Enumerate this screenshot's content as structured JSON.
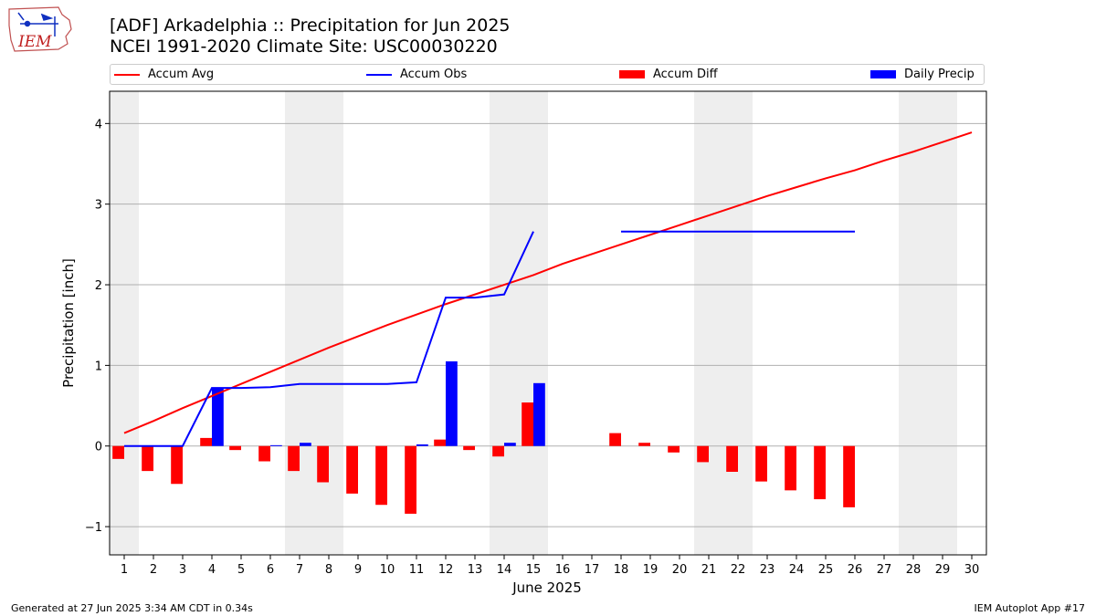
{
  "header": {
    "logo_text": "IEM",
    "title_line1": "[ADF] Arkadelphia :: Precipitation for Jun 2025",
    "title_line2": "NCEI 1991-2020 Climate Site: USC00030220"
  },
  "legend": {
    "items": [
      {
        "label": "Accum Avg",
        "kind": "line",
        "color": "#ff0000"
      },
      {
        "label": "Accum Obs",
        "kind": "line",
        "color": "#0000ff"
      },
      {
        "label": "Accum Diff",
        "kind": "bar",
        "color": "#ff0000"
      },
      {
        "label": "Daily Precip",
        "kind": "bar",
        "color": "#0000ff"
      }
    ]
  },
  "footer": {
    "left": "Generated at 27 Jun 2025 3:34 AM CDT in 0.34s",
    "right": "IEM Autoplot App #17"
  },
  "chart_data": {
    "type": "bar",
    "xlabel": "June 2025",
    "ylabel": "Precipitation [inch]",
    "xlim": [
      0.5,
      30.5
    ],
    "ylim": [
      -1.35,
      4.4
    ],
    "yticks": [
      -1,
      0,
      1,
      2,
      3,
      4
    ],
    "ytick_labels": [
      "−1",
      "0",
      "1",
      "2",
      "3",
      "4"
    ],
    "days": [
      1,
      2,
      3,
      4,
      5,
      6,
      7,
      8,
      9,
      10,
      11,
      12,
      13,
      14,
      15,
      16,
      17,
      18,
      19,
      20,
      21,
      22,
      23,
      24,
      25,
      26,
      27,
      28,
      29,
      30
    ],
    "weekend_days": [
      1,
      7,
      8,
      14,
      15,
      21,
      22,
      28,
      29
    ],
    "grid": "horizontal",
    "series": [
      {
        "name": "Accum Avg",
        "kind": "line",
        "color": "#ff0000",
        "x": [
          1,
          2,
          3,
          4,
          5,
          6,
          7,
          8,
          9,
          10,
          11,
          12,
          13,
          14,
          15,
          16,
          17,
          18,
          19,
          20,
          21,
          22,
          23,
          24,
          25,
          26,
          27,
          28,
          29,
          30
        ],
        "values": [
          0.16,
          0.31,
          0.47,
          0.62,
          0.77,
          0.92,
          1.07,
          1.22,
          1.36,
          1.5,
          1.63,
          1.76,
          1.88,
          2.0,
          2.12,
          2.26,
          2.38,
          2.5,
          2.62,
          2.74,
          2.86,
          2.98,
          3.1,
          3.21,
          3.32,
          3.42,
          3.54,
          3.65,
          3.77,
          3.89
        ]
      },
      {
        "name": "Accum Obs",
        "kind": "line",
        "color": "#0000ff",
        "segments": [
          {
            "x": [
              1,
              2,
              3,
              4,
              5,
              6,
              7,
              8,
              9,
              10,
              11,
              12,
              13,
              14,
              15
            ],
            "values": [
              0.0,
              0.0,
              0.0,
              0.72,
              0.72,
              0.73,
              0.77,
              0.77,
              0.77,
              0.77,
              0.79,
              1.84,
              1.84,
              1.88,
              2.66
            ]
          },
          {
            "x": [
              18,
              19,
              20,
              21,
              22,
              23,
              24,
              25,
              26
            ],
            "values": [
              2.66,
              2.66,
              2.66,
              2.66,
              2.66,
              2.66,
              2.66,
              2.66,
              2.66
            ]
          }
        ]
      },
      {
        "name": "Accum Diff",
        "kind": "bar",
        "color": "#ff0000",
        "x": [
          1,
          2,
          3,
          4,
          5,
          6,
          7,
          8,
          9,
          10,
          11,
          12,
          13,
          14,
          15,
          18,
          19,
          20,
          21,
          22,
          23,
          24,
          25,
          26
        ],
        "values": [
          -0.16,
          -0.31,
          -0.47,
          0.1,
          -0.05,
          -0.19,
          -0.31,
          -0.45,
          -0.59,
          -0.73,
          -0.84,
          0.08,
          -0.05,
          -0.13,
          0.54,
          0.16,
          0.04,
          -0.08,
          -0.2,
          -0.32,
          -0.44,
          -0.55,
          -0.66,
          -0.76
        ]
      },
      {
        "name": "Daily Precip",
        "kind": "bar",
        "color": "#0000ff",
        "x": [
          1,
          2,
          3,
          4,
          5,
          6,
          7,
          8,
          9,
          10,
          11,
          12,
          13,
          14,
          15
        ],
        "values": [
          0.0,
          0.0,
          0.0,
          0.72,
          0.0,
          0.01,
          0.04,
          0.0,
          0.0,
          0.0,
          0.02,
          1.05,
          0.0,
          0.04,
          0.78
        ]
      }
    ]
  }
}
